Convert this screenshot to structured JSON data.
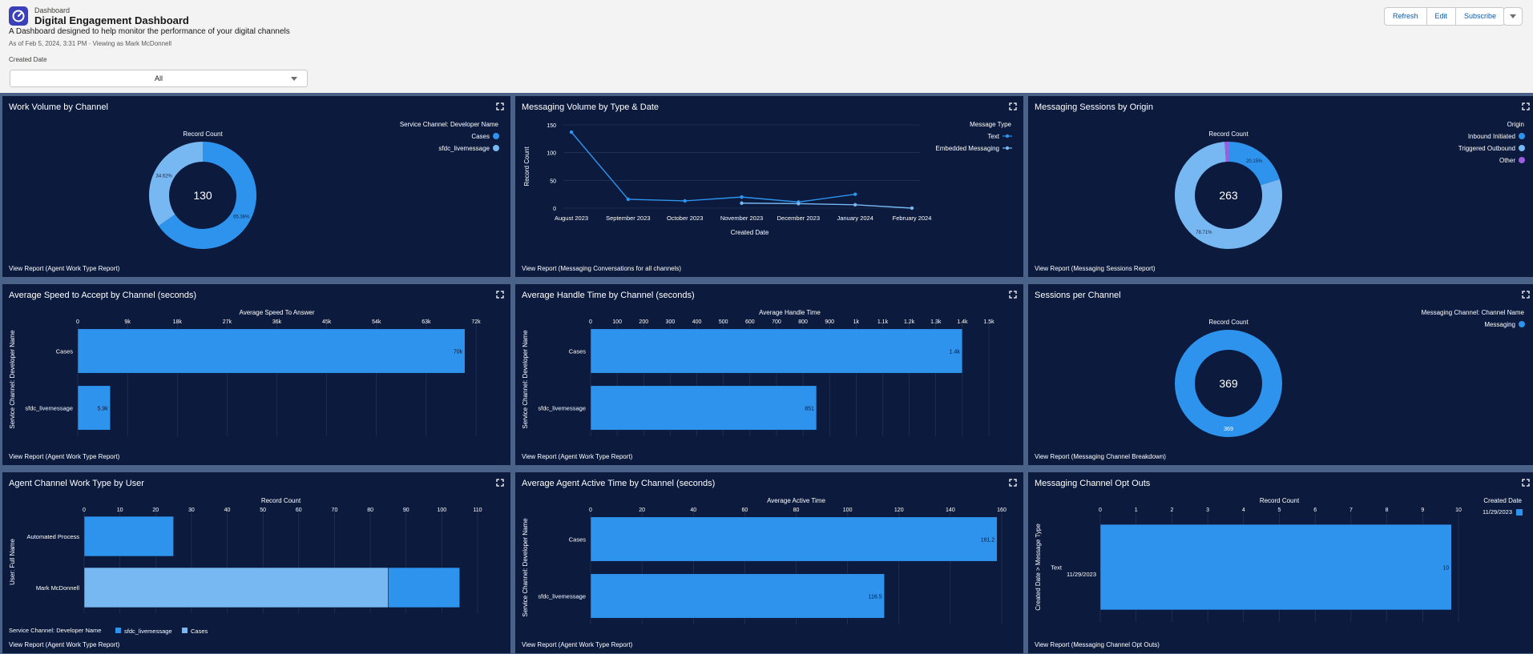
{
  "header": {
    "breadcrumb": "Dashboard",
    "title": "Digital Engagement Dashboard",
    "description": "A Dashboard designed to help monitor the performance of your digital channels",
    "as_of": "As of Feb 5, 2024, 3:31 PM · Viewing as Mark McDonnell",
    "filter_label": "Created Date",
    "filter_value": "All"
  },
  "actions": {
    "refresh": "Refresh",
    "edit": "Edit",
    "subscribe": "Subscribe"
  },
  "colors": {
    "primary": "#2e93ec",
    "light": "#78b8f2",
    "purple": "#a05ce0",
    "panel_bg": "#0b1a3d",
    "page_bg": "#f3f3f3"
  },
  "widgets": [
    {
      "id": "w1",
      "title": "Work Volume by Channel",
      "view_report": "View Report (Agent Work Type Report)",
      "chart_data": {
        "type": "donut",
        "title": "Record Count",
        "legend_title": "Service Channel: Developer Name",
        "legend": [
          "Cases",
          "sfdc_livemessage"
        ],
        "center_value": "130",
        "slices": [
          {
            "name": "Cases",
            "value": 65.38,
            "label": "65.38%"
          },
          {
            "name": "sfdc_livemessage",
            "value": 34.62,
            "label": "34.62%"
          }
        ]
      }
    },
    {
      "id": "w2",
      "title": "Messaging Volume by Type & Date",
      "view_report": "View Report (Messaging Conversations for all channels)",
      "chart_data": {
        "type": "line",
        "xlabel": "Created Date",
        "ylabel": "Record Count",
        "legend_title": "Message Type",
        "categories": [
          "August 2023",
          "September 2023",
          "October 2023",
          "November 2023",
          "December 2023",
          "January 2024",
          "February 2024"
        ],
        "yticks": [
          0,
          50,
          100,
          150
        ],
        "ylim": [
          0,
          150
        ],
        "series": [
          {
            "name": "Text",
            "values": [
              137,
              16,
              13,
              20,
              11,
              25,
              null
            ]
          },
          {
            "name": "Embedded Messaging",
            "values": [
              null,
              null,
              null,
              9,
              8,
              6,
              0
            ]
          }
        ]
      }
    },
    {
      "id": "w3",
      "title": "Messaging Sessions by Origin",
      "view_report": "View Report (Messaging Sessions Report)",
      "chart_data": {
        "type": "donut",
        "title": "Record Count",
        "legend_title": "Origin",
        "legend": [
          "Inbound Initiated",
          "Triggered Outbound",
          "Other"
        ],
        "center_value": "263",
        "slices": [
          {
            "name": "Inbound Initiated",
            "value": 20.15,
            "label": "20.15%"
          },
          {
            "name": "Triggered Outbound",
            "value": 78.71,
            "label": "78.71%"
          },
          {
            "name": "Other",
            "value": 1.14,
            "label": ""
          }
        ]
      }
    },
    {
      "id": "w4",
      "title": "Average Speed to Accept by Channel (seconds)",
      "view_report": "View Report (Agent Work Type Report)",
      "chart_data": {
        "type": "bar",
        "orientation": "horizontal",
        "title": "Average Speed To Answer",
        "ylabel": "Service Channel: Developer Name",
        "categories": [
          "Cases",
          "sfdc_livemessage"
        ],
        "values": [
          70000,
          5900
        ],
        "labels": [
          "70k",
          "5.9k"
        ],
        "xticks": [
          "0",
          "9k",
          "18k",
          "27k",
          "36k",
          "45k",
          "54k",
          "63k",
          "72k"
        ],
        "xlim": [
          0,
          72000
        ]
      }
    },
    {
      "id": "w5",
      "title": "Average Handle Time by Channel (seconds)",
      "view_report": "View Report (Agent Work Type Report)",
      "chart_data": {
        "type": "bar",
        "orientation": "horizontal",
        "title": "Average Handle Time",
        "ylabel": "Service Channel: Developer Name",
        "categories": [
          "Cases",
          "sfdc_livemessage"
        ],
        "values": [
          1400,
          851
        ],
        "labels": [
          "1.4k",
          "851"
        ],
        "xticks": [
          "0",
          "100",
          "200",
          "300",
          "400",
          "500",
          "600",
          "700",
          "800",
          "900",
          "1k",
          "1.1k",
          "1.2k",
          "1.3k",
          "1.4k",
          "1.5k"
        ],
        "xlim": [
          0,
          1500
        ]
      }
    },
    {
      "id": "w6",
      "title": "Sessions per Channel",
      "view_report": "View Report (Messaging Channel Breakdown)",
      "chart_data": {
        "type": "donut",
        "title": "Record Count",
        "legend_title": "Messaging Channel: Channel Name",
        "legend": [
          "Messaging"
        ],
        "center_value": "369",
        "slices": [
          {
            "name": "Messaging",
            "value": 369,
            "label": "369"
          }
        ]
      }
    },
    {
      "id": "w7",
      "title": "Agent Channel Work Type by User",
      "view_report": "View Report (Agent Work Type Report)",
      "chart_data": {
        "type": "bar",
        "orientation": "horizontal",
        "stacked": true,
        "title": "Record Count",
        "ylabel": "User: Full Name",
        "categories": [
          "Automated Process",
          "Mark McDonnell"
        ],
        "legend_title": "Service Channel: Developer Name",
        "legend": [
          "sfdc_livemessage",
          "Cases"
        ],
        "series": [
          {
            "name": "Cases",
            "values": [
              25,
              0
            ]
          },
          {
            "name": "sfdc_livemessage",
            "values": [
              0,
              85
            ]
          },
          {
            "name": "Cases",
            "values": [
              0,
              20
            ]
          }
        ],
        "xticks": [
          "0",
          "10",
          "20",
          "30",
          "40",
          "50",
          "60",
          "70",
          "80",
          "90",
          "100",
          "110"
        ],
        "xlim": [
          0,
          110
        ]
      }
    },
    {
      "id": "w8",
      "title": "Average Agent Active Time by Channel (seconds)",
      "view_report": "View Report (Agent Work Type Report)",
      "chart_data": {
        "type": "bar",
        "orientation": "horizontal",
        "title": "Average Active Time",
        "ylabel": "Service Channel: Developer Name",
        "categories": [
          "Cases",
          "sfdc_livemessage"
        ],
        "values": [
          161.2,
          116.5
        ],
        "labels": [
          "161.2",
          "116.5"
        ],
        "xticks": [
          "0",
          "20",
          "40",
          "60",
          "80",
          "100",
          "120",
          "140",
          "160"
        ],
        "xlim": [
          0,
          163
        ]
      }
    },
    {
      "id": "w9",
      "title": "Messaging Channel Opt Outs",
      "view_report": "View Report (Messaging Channel Opt Outs)",
      "chart_data": {
        "type": "bar",
        "orientation": "horizontal",
        "title": "Record Count",
        "ylabel": "Created Date  >  Message Type",
        "legend_title": "Created Date",
        "legend": [
          "11/29/2023"
        ],
        "categories": [
          "Text"
        ],
        "group_label": "11/29/2023",
        "values": [
          10
        ],
        "labels": [
          "10"
        ],
        "xticks": [
          "0",
          "1",
          "2",
          "3",
          "4",
          "5",
          "6",
          "7",
          "8",
          "9",
          "10"
        ],
        "xlim": [
          0,
          10.2
        ]
      }
    }
  ]
}
